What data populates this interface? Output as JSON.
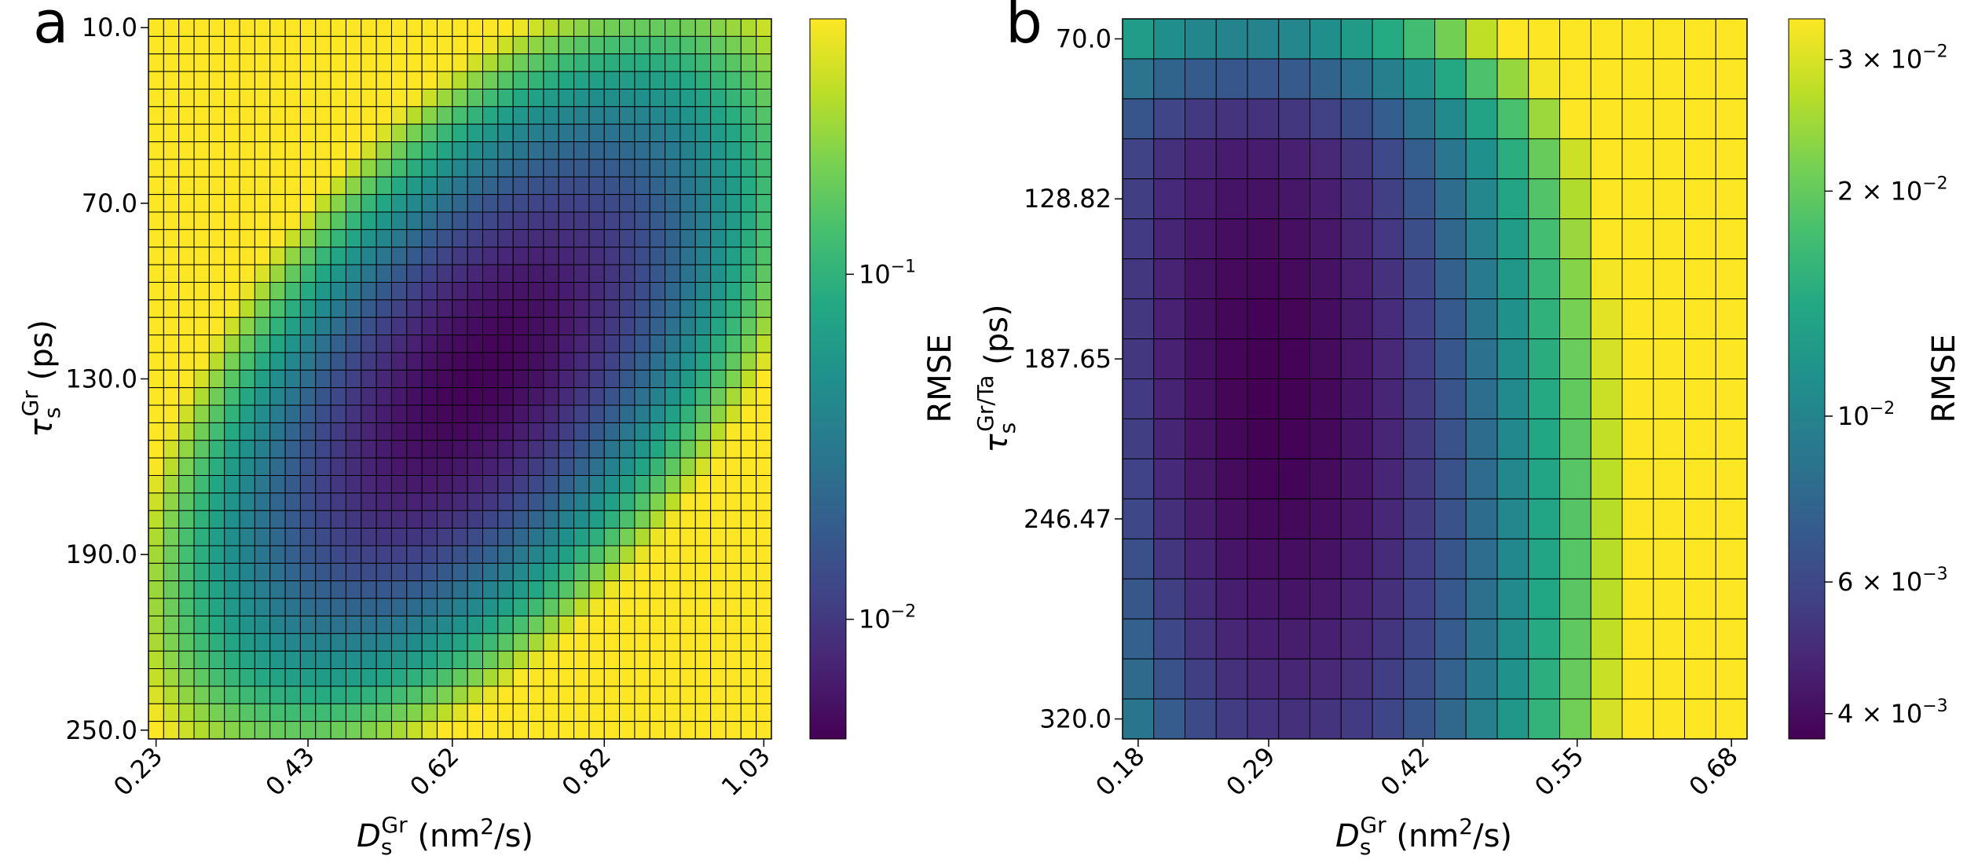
{
  "chart_data": [
    {
      "type": "heatmap",
      "panel_label": "a",
      "grid": {
        "cols": 41,
        "rows": 41
      },
      "x_range": [
        0.23,
        1.03
      ],
      "y_range": [
        10.0,
        250.0
      ],
      "x_ticks": [
        {
          "value": 0.23,
          "label": "0.23"
        },
        {
          "value": 0.43,
          "label": "0.43"
        },
        {
          "value": 0.62,
          "label": "0.62"
        },
        {
          "value": 0.82,
          "label": "0.82"
        },
        {
          "value": 1.03,
          "label": "1.03"
        }
      ],
      "y_ticks": [
        {
          "value": 10.0,
          "label": "10.0"
        },
        {
          "value": 70.0,
          "label": "70.0"
        },
        {
          "value": 130.0,
          "label": "130.0"
        },
        {
          "value": 190.0,
          "label": "190.0"
        },
        {
          "value": 250.0,
          "label": "250.0"
        }
      ],
      "xlabel": {
        "base": "D",
        "sub": "s",
        "sup": "Gr",
        "unit_pre": " (nm",
        "unit_sup": "2",
        "unit_post": "/s)"
      },
      "ylabel": {
        "base": "τ",
        "sub": "s",
        "sup": "Gr",
        "unit": " (ps)"
      },
      "minimum": {
        "x": 0.65,
        "y": 130.0,
        "rmse": 0.0045
      },
      "colorbar": {
        "title": "RMSE",
        "scale": "log",
        "range": [
          0.0045,
          0.55
        ],
        "ticks": [
          {
            "value": 0.1,
            "mantissa": "",
            "base": "10",
            "exp": "−1"
          },
          {
            "value": 0.01,
            "mantissa": "",
            "base": "10",
            "exp": "−2"
          }
        ]
      },
      "colormap": "viridis"
    },
    {
      "type": "heatmap",
      "panel_label": "b",
      "grid": {
        "cols": 20,
        "rows": 18
      },
      "x_range": [
        0.18,
        0.68
      ],
      "y_range": [
        70.0,
        320.0
      ],
      "x_ticks": [
        {
          "value": 0.18,
          "label": "0.18"
        },
        {
          "value": 0.29,
          "label": "0.29"
        },
        {
          "value": 0.42,
          "label": "0.42"
        },
        {
          "value": 0.55,
          "label": "0.55"
        },
        {
          "value": 0.68,
          "label": "0.68"
        }
      ],
      "y_ticks": [
        {
          "value": 70.0,
          "label": "70.0"
        },
        {
          "value": 128.82,
          "label": "128.82"
        },
        {
          "value": 187.65,
          "label": "187.65"
        },
        {
          "value": 246.47,
          "label": "246.47"
        },
        {
          "value": 320.0,
          "label": "320.0"
        }
      ],
      "xlabel": {
        "base": "D",
        "sub": "s",
        "sup": "Gr",
        "unit_pre": " (nm",
        "unit_sup": "2",
        "unit_post": "/s)"
      },
      "ylabel": {
        "base": "τ",
        "sub": "s",
        "sup": "Gr/Ta",
        "unit": " (ps)"
      },
      "minimum": {
        "x": 0.31,
        "y": 200.0,
        "rmse": 0.0037
      },
      "colorbar": {
        "title": "RMSE",
        "scale": "log",
        "range": [
          0.0037,
          0.034
        ],
        "ticks": [
          {
            "value": 0.03,
            "mantissa": "3 × ",
            "base": "10",
            "exp": "−2"
          },
          {
            "value": 0.02,
            "mantissa": "2 × ",
            "base": "10",
            "exp": "−2"
          },
          {
            "value": 0.01,
            "mantissa": "",
            "base": "10",
            "exp": "−2"
          },
          {
            "value": 0.006,
            "mantissa": "6 × ",
            "base": "10",
            "exp": "−3"
          },
          {
            "value": 0.004,
            "mantissa": "4 × ",
            "base": "10",
            "exp": "−3"
          }
        ]
      },
      "colormap": "viridis"
    }
  ]
}
